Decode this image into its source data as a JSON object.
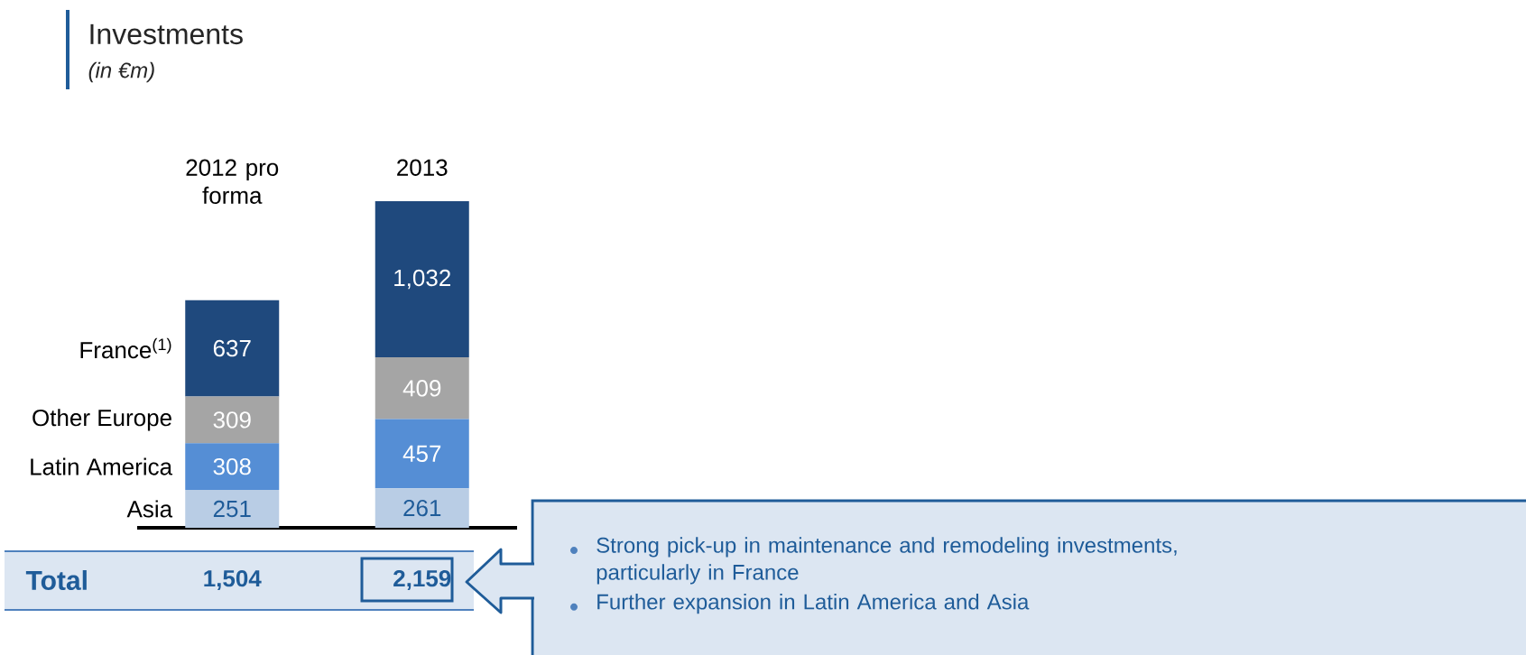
{
  "chart_data": {
    "type": "bar",
    "title": "Investments",
    "subtitle": "(in €m)",
    "categories": [
      "2012 pro forma",
      "2013"
    ],
    "stacked": true,
    "legend": false,
    "series": [
      {
        "name": "Asia",
        "color": "#b9cde5",
        "values": [
          251,
          261
        ],
        "value_labels": [
          "251",
          "261"
        ]
      },
      {
        "name": "Latin America",
        "color": "#558ed5",
        "values": [
          308,
          457
        ],
        "value_labels": [
          "308",
          "457"
        ]
      },
      {
        "name": "Other Europe",
        "color": "#a5a5a5",
        "values": [
          309,
          409
        ],
        "value_labels": [
          "309",
          "409"
        ]
      },
      {
        "name": "France$^{(1)}$",
        "color": "#1f497d",
        "values": [
          637,
          1032
        ],
        "value_labels": [
          "637",
          "1,032"
        ]
      }
    ],
    "totals": [
      "1,504",
      "2,159"
    ],
    "annotations": [
      "Total",
      "Strong pick-up in maintenance and remodeling investments, particularly in France",
      "Further expansion in Latin America and Asia"
    ]
  }
}
